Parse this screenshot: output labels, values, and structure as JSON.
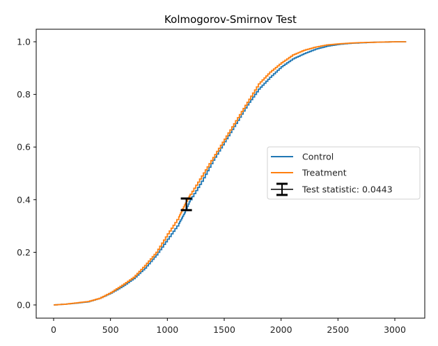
{
  "chart_data": {
    "type": "line",
    "title": "Kolmogorov-Smirnov Test",
    "xlabel": "",
    "ylabel": "",
    "xlim": [
      -150,
      3270
    ],
    "ylim": [
      -0.05,
      1.05
    ],
    "xticks": [
      0,
      500,
      1000,
      1500,
      2000,
      2500,
      3000
    ],
    "xtick_labels": [
      "0",
      "500",
      "1000",
      "1500",
      "2000",
      "2500",
      "3000"
    ],
    "yticks": [
      0.0,
      0.2,
      0.4,
      0.6,
      0.8,
      1.0
    ],
    "ytick_labels": [
      "0.0",
      "0.2",
      "0.4",
      "0.6",
      "0.8",
      "1.0"
    ],
    "grid": false,
    "legend_position": "center right",
    "series": [
      {
        "name": "Control",
        "color": "#1f77b4",
        "x": [
          0,
          100,
          200,
          300,
          400,
          500,
          600,
          700,
          800,
          900,
          1000,
          1100,
          1150,
          1200,
          1300,
          1400,
          1500,
          1600,
          1700,
          1800,
          1900,
          2000,
          2100,
          2200,
          2300,
          2400,
          2500,
          2600,
          2700,
          2800,
          2900,
          3000,
          3100
        ],
        "y": [
          0.0,
          0.003,
          0.007,
          0.012,
          0.025,
          0.045,
          0.07,
          0.1,
          0.14,
          0.19,
          0.25,
          0.31,
          0.35,
          0.4,
          0.47,
          0.55,
          0.62,
          0.69,
          0.76,
          0.82,
          0.865,
          0.905,
          0.935,
          0.955,
          0.972,
          0.983,
          0.99,
          0.994,
          0.996,
          0.998,
          0.999,
          1.0,
          1.0
        ]
      },
      {
        "name": "Treatment",
        "color": "#ff7f0e",
        "x": [
          0,
          100,
          200,
          300,
          400,
          500,
          600,
          700,
          800,
          900,
          1000,
          1100,
          1150,
          1200,
          1300,
          1400,
          1500,
          1600,
          1700,
          1800,
          1900,
          2000,
          2100,
          2200,
          2300,
          2400,
          2500,
          2600,
          2700,
          2800,
          2900,
          3000,
          3100
        ],
        "y": [
          0.0,
          0.003,
          0.008,
          0.013,
          0.025,
          0.047,
          0.075,
          0.105,
          0.15,
          0.2,
          0.27,
          0.335,
          0.38,
          0.42,
          0.49,
          0.56,
          0.63,
          0.7,
          0.77,
          0.84,
          0.885,
          0.92,
          0.95,
          0.968,
          0.98,
          0.988,
          0.992,
          0.995,
          0.997,
          0.998,
          0.999,
          1.0,
          1.0
        ]
      }
    ],
    "annotations": [
      {
        "type": "errorbar",
        "label": "Test statistic: 0.0443",
        "x": 1167,
        "y_low": 0.36,
        "y_high": 0.4043,
        "color": "#000000"
      }
    ],
    "legend": [
      "Control",
      "Treatment",
      "Test statistic: 0.0443"
    ]
  },
  "legend": {
    "items": [
      {
        "label": "Control",
        "color": "#1f77b4"
      },
      {
        "label": "Treatment",
        "color": "#ff7f0e"
      },
      {
        "label": "Test statistic: 0.0443",
        "color": "#000000"
      }
    ]
  }
}
